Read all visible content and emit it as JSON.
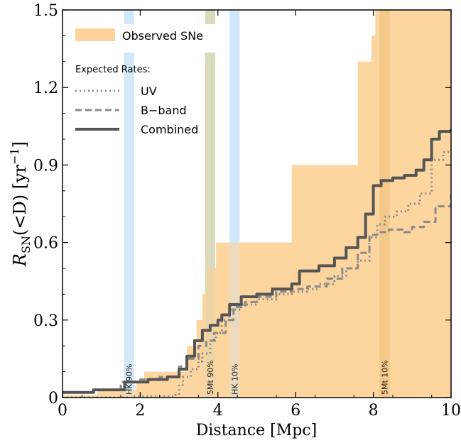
{
  "chart_data": {
    "type": "line",
    "xlabel": "Distance [Mpc]",
    "ylabel": {
      "main_prefix": "R",
      "main_sub": "SN",
      "main_suffix": "(<D) [yr",
      "exp": "−1",
      "close": "]"
    },
    "xlim": [
      0,
      10
    ],
    "ylim": [
      0,
      1.5
    ],
    "x_ticks": [
      {
        "value": 0,
        "label": "0"
      },
      {
        "value": 2,
        "label": "2"
      },
      {
        "value": 4,
        "label": "4"
      },
      {
        "value": 6,
        "label": "6"
      },
      {
        "value": 8,
        "label": "8"
      },
      {
        "value": 10,
        "label": "10"
      }
    ],
    "y_ticks": [
      {
        "value": 0,
        "label": "0"
      },
      {
        "value": 0.3,
        "label": "0.3"
      },
      {
        "value": 0.6,
        "label": "0.6"
      },
      {
        "value": 0.9,
        "label": "0.9"
      },
      {
        "value": 1.2,
        "label": "1.2"
      },
      {
        "value": 1.5,
        "label": "1.5"
      }
    ],
    "legend": {
      "placement": "top-left",
      "observed": "Observed SNe",
      "subheader": "Expected Rates:",
      "uv": "UV",
      "bband": "B−band",
      "combined": "Combined"
    },
    "bands": [
      {
        "x0": 1.58,
        "x1": 1.84,
        "color": "#cfe6f6",
        "label": "HK 90%",
        "label_x": 1.71
      },
      {
        "x0": 3.67,
        "x1": 3.93,
        "color": "#d8d6b8",
        "label": "5Mt 90%",
        "label_x": 3.8
      },
      {
        "x0": 4.3,
        "x1": 4.56,
        "color": "#cfe6f6",
        "label": "HK 10%",
        "label_x": 4.43
      },
      {
        "x0": 8.16,
        "x1": 8.42,
        "color": "#e2bb70",
        "label": "5Mt 10%",
        "label_x": 8.29
      }
    ],
    "observed_steps": [
      [
        0,
        0.01
      ],
      [
        0.2,
        0.01
      ],
      [
        0.9,
        0.03
      ],
      [
        1.9,
        0.06
      ],
      [
        2.1,
        0.1
      ],
      [
        3.2,
        0.2
      ],
      [
        3.45,
        0.3
      ],
      [
        3.6,
        0.4
      ],
      [
        3.7,
        0.5
      ],
      [
        3.95,
        0.6
      ],
      [
        5.9,
        0.9
      ],
      [
        7.6,
        1.3
      ],
      [
        7.95,
        1.4
      ],
      [
        8.05,
        1.5
      ],
      [
        10,
        1.5
      ]
    ],
    "series": [
      {
        "name": "UV",
        "style": "dotted",
        "points": [
          [
            0,
            0
          ],
          [
            1.0,
            0.0
          ],
          [
            1.8,
            0.005
          ],
          [
            2.9,
            0.01
          ],
          [
            3.0,
            0.05
          ],
          [
            3.1,
            0.08
          ],
          [
            3.3,
            0.11
          ],
          [
            3.5,
            0.14
          ],
          [
            3.6,
            0.17
          ],
          [
            3.8,
            0.22
          ],
          [
            3.95,
            0.25
          ],
          [
            4.1,
            0.3
          ],
          [
            4.3,
            0.34
          ],
          [
            4.6,
            0.36
          ],
          [
            5.0,
            0.38
          ],
          [
            5.5,
            0.4
          ],
          [
            5.9,
            0.41
          ],
          [
            6.3,
            0.42
          ],
          [
            6.6,
            0.44
          ],
          [
            7.0,
            0.47
          ],
          [
            7.3,
            0.5
          ],
          [
            7.6,
            0.53
          ],
          [
            7.9,
            0.62
          ],
          [
            8.1,
            0.67
          ],
          [
            8.3,
            0.7
          ],
          [
            8.6,
            0.72
          ],
          [
            8.9,
            0.75
          ],
          [
            9.2,
            0.79
          ],
          [
            9.5,
            0.92
          ],
          [
            9.8,
            0.95
          ],
          [
            10,
            0.97
          ]
        ]
      },
      {
        "name": "B−band",
        "style": "dashed",
        "points": [
          [
            0,
            0.02
          ],
          [
            0.8,
            0.03
          ],
          [
            1.5,
            0.06
          ],
          [
            2.0,
            0.07
          ],
          [
            2.5,
            0.08
          ],
          [
            3.0,
            0.12
          ],
          [
            3.2,
            0.15
          ],
          [
            3.5,
            0.2
          ],
          [
            3.7,
            0.22
          ],
          [
            3.9,
            0.25
          ],
          [
            4.2,
            0.3
          ],
          [
            4.4,
            0.35
          ],
          [
            4.7,
            0.37
          ],
          [
            5.0,
            0.39
          ],
          [
            5.5,
            0.41
          ],
          [
            5.9,
            0.42
          ],
          [
            6.3,
            0.43
          ],
          [
            6.8,
            0.46
          ],
          [
            7.2,
            0.5
          ],
          [
            7.6,
            0.56
          ],
          [
            7.9,
            0.63
          ],
          [
            8.1,
            0.64
          ],
          [
            8.4,
            0.65
          ],
          [
            8.8,
            0.64
          ],
          [
            9.0,
            0.66
          ],
          [
            9.3,
            0.68
          ],
          [
            9.6,
            0.74
          ],
          [
            10,
            0.79
          ]
        ]
      },
      {
        "name": "Combined",
        "style": "solid",
        "points": [
          [
            0,
            0.02
          ],
          [
            0.8,
            0.03
          ],
          [
            1.6,
            0.06
          ],
          [
            2.2,
            0.07
          ],
          [
            2.7,
            0.08
          ],
          [
            3.0,
            0.11
          ],
          [
            3.2,
            0.16
          ],
          [
            3.4,
            0.22
          ],
          [
            3.6,
            0.26
          ],
          [
            3.8,
            0.28
          ],
          [
            4.0,
            0.3
          ],
          [
            4.1,
            0.32
          ],
          [
            4.3,
            0.36
          ],
          [
            4.6,
            0.39
          ],
          [
            5.0,
            0.4
          ],
          [
            5.4,
            0.42
          ],
          [
            5.9,
            0.44
          ],
          [
            6.1,
            0.49
          ],
          [
            6.6,
            0.51
          ],
          [
            7.0,
            0.54
          ],
          [
            7.3,
            0.58
          ],
          [
            7.6,
            0.62
          ],
          [
            7.8,
            0.71
          ],
          [
            8.0,
            0.82
          ],
          [
            8.2,
            0.84
          ],
          [
            8.5,
            0.85
          ],
          [
            8.8,
            0.86
          ],
          [
            9.1,
            0.88
          ],
          [
            9.3,
            0.92
          ],
          [
            9.5,
            1.0
          ],
          [
            9.7,
            1.03
          ],
          [
            10,
            1.04
          ]
        ]
      }
    ],
    "colors": {
      "observed": "#fdd39a",
      "uv": "#8a8a8a",
      "bband": "#8a8a8a",
      "combined": "#555555"
    }
  }
}
